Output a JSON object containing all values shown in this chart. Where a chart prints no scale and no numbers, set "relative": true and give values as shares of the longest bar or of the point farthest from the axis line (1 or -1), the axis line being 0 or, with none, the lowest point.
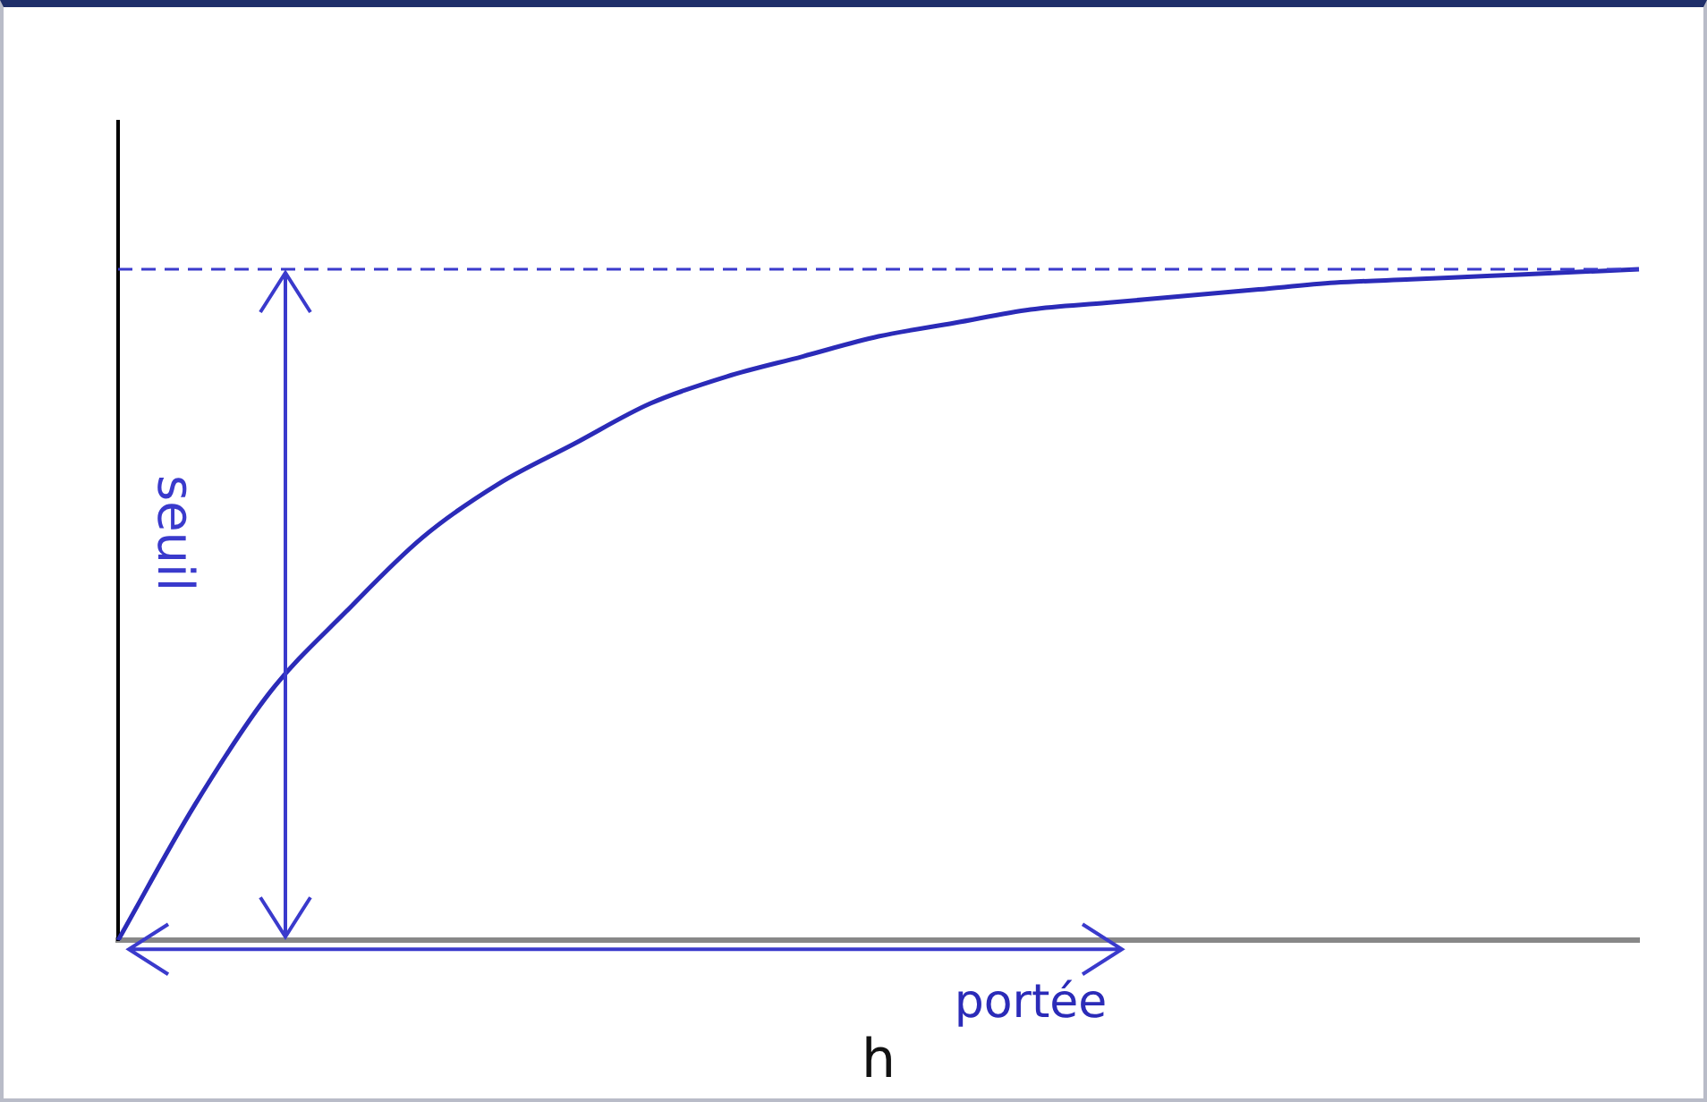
{
  "chart_data": {
    "type": "line",
    "xlabel": "h",
    "relative": true,
    "grid": false,
    "legend": false,
    "marker": "none",
    "line_style": "solid",
    "categories": [
      null,
      null,
      null,
      null,
      null,
      null,
      null,
      null,
      null,
      null,
      null,
      null,
      null,
      null,
      null,
      null,
      null,
      null,
      null,
      null,
      null
    ],
    "series": [
      {
        "color": "#2b2bb8",
        "values": [
          0,
          0.2,
          0.37,
          0.49,
          0.6,
          0.68,
          0.74,
          0.8,
          0.84,
          0.87,
          0.9,
          0.92,
          0.94,
          0.95,
          0.96,
          0.97,
          0.98,
          0.985,
          0.99,
          0.995,
          1
        ]
      }
    ],
    "ref_lines": [
      {
        "axis": "y",
        "value": 1,
        "label": "seuil",
        "color": "#3a3acc",
        "line_style": "dashed"
      }
    ],
    "annotations": [
      "portée"
    ]
  }
}
